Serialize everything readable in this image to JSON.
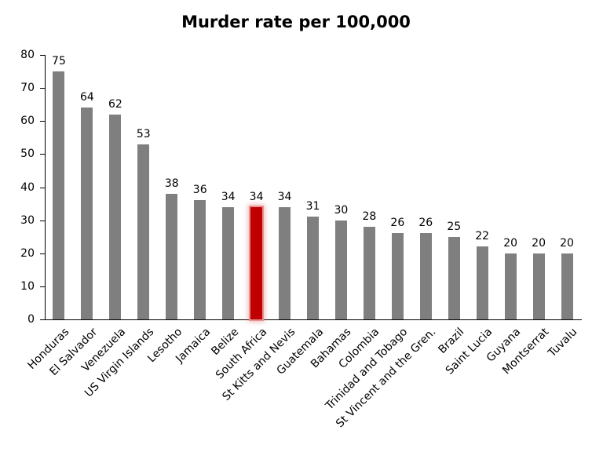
{
  "chart_data": {
    "type": "bar",
    "title": "Murder rate per 100,000",
    "categories": [
      "Honduras",
      "El Salvador",
      "Venezuela",
      "US Virgin Islands",
      "Lesotho",
      "Jamaica",
      "Belize",
      "South Africa",
      "St Kitts and Nevis",
      "Guatemala",
      "Bahamas",
      "Colombia",
      "Trinidad and Tobago",
      "St Vincent and the Gren.",
      "Brazil",
      "Saint Lucia",
      "Guyana",
      "Montserrat",
      "Tuvalu"
    ],
    "values": [
      75,
      64,
      62,
      53,
      38,
      36,
      34,
      34,
      34,
      31,
      30,
      28,
      26,
      26,
      25,
      22,
      20,
      20,
      20
    ],
    "highlight_category": "South Africa",
    "highlight_index": 7,
    "xlabel": "",
    "ylabel": "",
    "ylim": [
      0,
      80
    ],
    "yticks": [
      0,
      10,
      20,
      30,
      40,
      50,
      60,
      70,
      80
    ],
    "grid": false,
    "legend": false,
    "colors": {
      "bar": "#7f7f7f",
      "highlight_bar": "#c00000",
      "highlight_glow": "#e59393",
      "axis": "#000000",
      "text": "#000000"
    }
  }
}
